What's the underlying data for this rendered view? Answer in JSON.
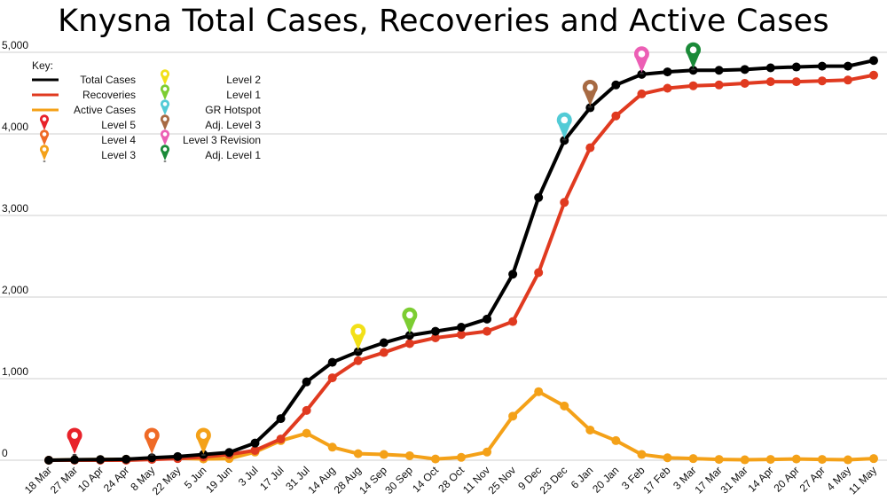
{
  "chart_data": {
    "type": "line",
    "title": "Knysna Total Cases, Recoveries and Active Cases",
    "categories": [
      "18 Mar",
      "27 Mar",
      "10 Apr",
      "24 Apr",
      "8 May",
      "22 May",
      "5 Jun",
      "19 Jun",
      "3 Jul",
      "17 Jul",
      "31 Jul",
      "14 Aug",
      "28 Aug",
      "14 Sep",
      "30 Sep",
      "14 Oct",
      "28 Oct",
      "11 Nov",
      "25 Nov",
      "9 Dec",
      "23 Dec",
      "6 Jan",
      "20 Jan",
      "3 Feb",
      "17 Feb",
      "3 Mar",
      "17 Mar",
      "31 Mar",
      "14 Apr",
      "20 Apr",
      "27 Apr",
      "4 May",
      "11 May"
    ],
    "ylim": [
      0,
      5000
    ],
    "yticks": [
      "0",
      "1,000",
      "2,000",
      "3,000",
      "4,000",
      "5,000"
    ],
    "grid": true,
    "legend_title": "Key:",
    "legend_position": "top-left",
    "series": [
      {
        "name": "Total Cases",
        "color": "#000000",
        "values": [
          0,
          5,
          8,
          12,
          30,
          45,
          70,
          95,
          210,
          510,
          960,
          1200,
          1330,
          1440,
          1530,
          1580,
          1630,
          1730,
          2280,
          3220,
          3920,
          4320,
          4600,
          4730,
          4760,
          4780,
          4780,
          4790,
          4810,
          4820,
          4830,
          4830,
          4900
        ]
      },
      {
        "name": "Recoveries",
        "color": "#e03a20",
        "values": [
          0,
          0,
          0,
          0,
          10,
          20,
          40,
          70,
          120,
          260,
          610,
          1010,
          1220,
          1320,
          1430,
          1500,
          1540,
          1580,
          1700,
          2300,
          3160,
          3830,
          4220,
          4490,
          4560,
          4590,
          4600,
          4620,
          4640,
          4640,
          4650,
          4660,
          4720
        ]
      },
      {
        "name": "Active Cases",
        "color": "#f4a118",
        "values": [
          0,
          5,
          8,
          12,
          20,
          25,
          15,
          20,
          100,
          240,
          330,
          160,
          80,
          70,
          55,
          15,
          35,
          100,
          540,
          840,
          665,
          370,
          240,
          70,
          30,
          20,
          10,
          5,
          10,
          15,
          10,
          5,
          20
        ]
      }
    ],
    "level_markers": [
      {
        "name": "Level 5",
        "color": "#e8222a",
        "category": "27 Mar"
      },
      {
        "name": "Level 4",
        "color": "#ef6a26",
        "category": "8 May"
      },
      {
        "name": "Level 3",
        "color": "#f4a118",
        "category": "5 Jun"
      },
      {
        "name": "Level 2",
        "color": "#f2e018",
        "category": "28 Aug"
      },
      {
        "name": "Level 1",
        "color": "#7ccd32",
        "category": "30 Sep"
      },
      {
        "name": "GR Hotspot",
        "color": "#52cbd6",
        "category": "23 Dec"
      },
      {
        "name": "Adj. Level 3",
        "color": "#a76a43",
        "category": "6 Jan"
      },
      {
        "name": "Level 3 Revision",
        "color": "#ec5fb5",
        "category": "3 Feb"
      },
      {
        "name": "Adj. Level 1",
        "color": "#1a8a38",
        "category": "3 Mar"
      }
    ]
  }
}
